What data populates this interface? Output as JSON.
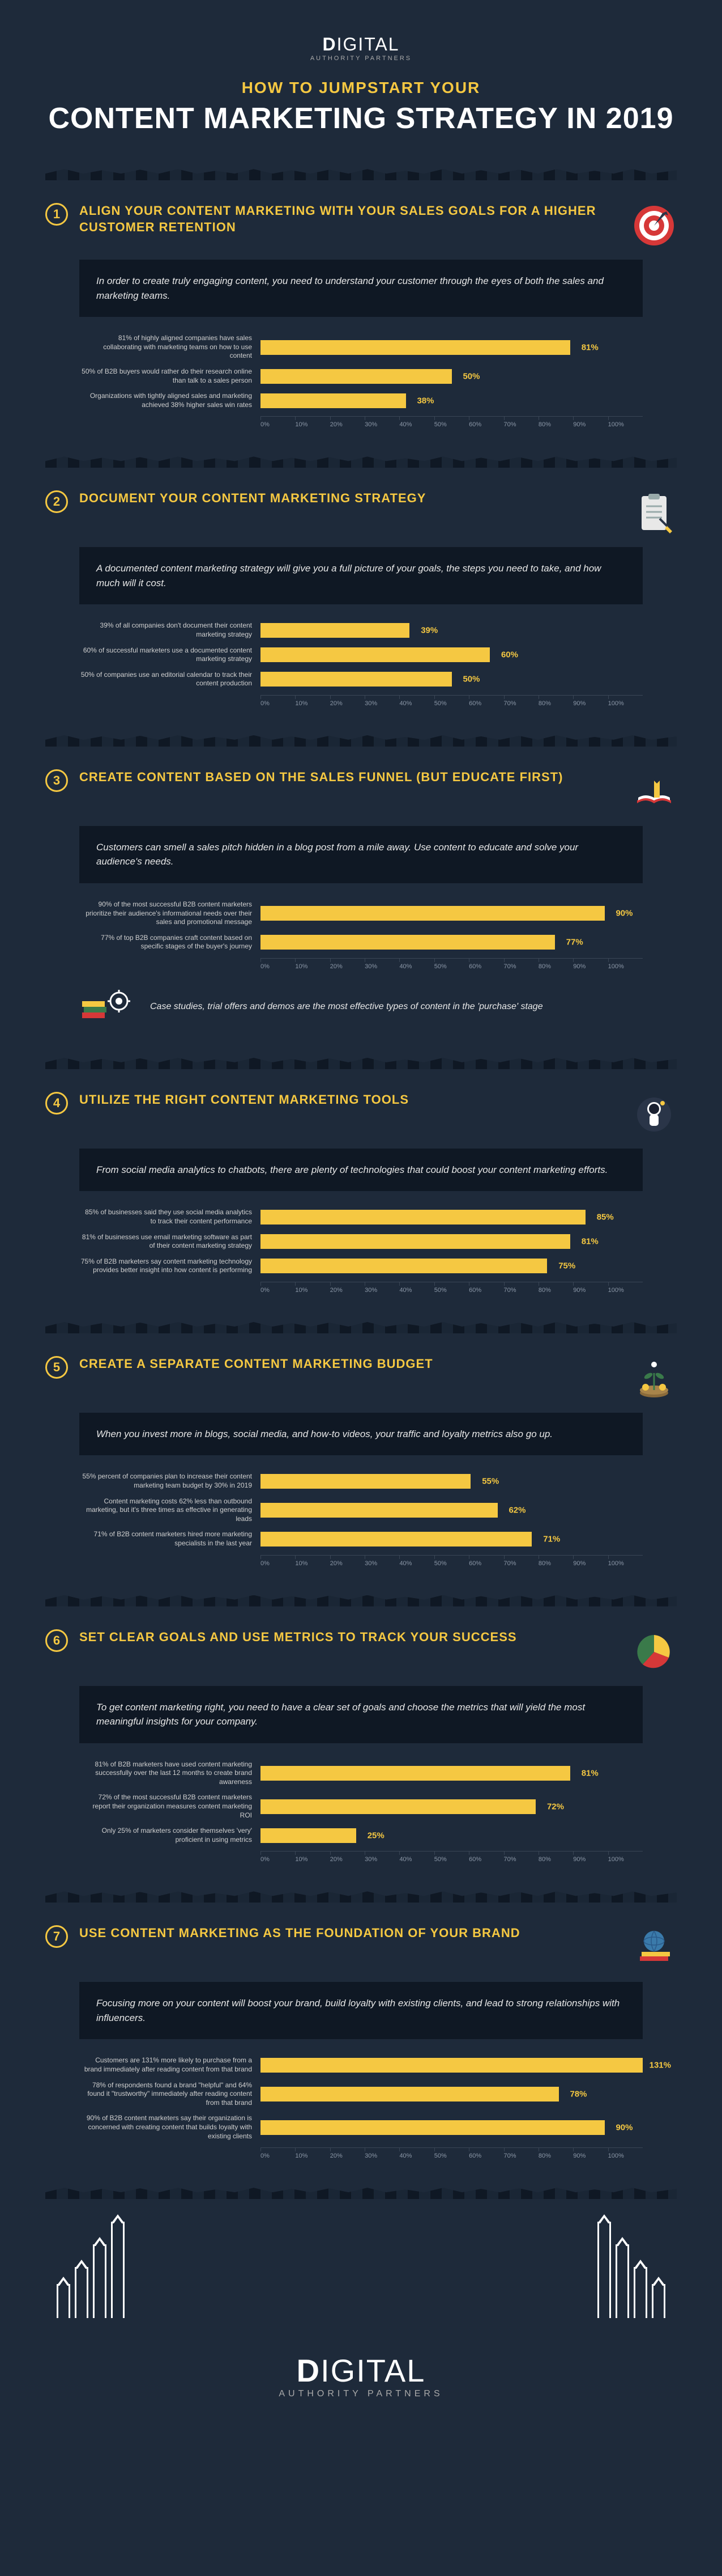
{
  "brand": {
    "name_bold": "D",
    "name_rest": "IGITAL",
    "sub": "AUTHORITY PARTNERS"
  },
  "title": {
    "line1": "HOW TO JUMPSTART YOUR",
    "line2": "CONTENT MARKETING STRATEGY IN 2019"
  },
  "axis_ticks": [
    "0%",
    "10%",
    "20%",
    "30%",
    "40%",
    "50%",
    "60%",
    "70%",
    "80%",
    "90%",
    "100%"
  ],
  "sections": [
    {
      "num": "1",
      "title": "ALIGN YOUR CONTENT MARKETING WITH YOUR SALES GOALS FOR A HIGHER CUSTOMER RETENTION",
      "desc": "In order to create truly engaging content, you need to understand your customer through the eyes of both the sales and marketing teams.",
      "bars": [
        {
          "label": "81% of highly aligned companies have sales collaborating with marketing teams on how to use content",
          "value": 81,
          "text": "81%"
        },
        {
          "label": "50% of B2B buyers would rather do their research online than talk to a sales person",
          "value": 50,
          "text": "50%"
        },
        {
          "label": "Organizations with tightly aligned sales and marketing achieved 38% higher sales win rates",
          "value": 38,
          "text": "38%"
        }
      ]
    },
    {
      "num": "2",
      "title": "DOCUMENT YOUR CONTENT MARKETING STRATEGY",
      "desc": "A documented content marketing strategy will give you a full picture of your goals, the steps you need to take, and how much will it cost.",
      "bars": [
        {
          "label": "39% of all companies don't document their content marketing strategy",
          "value": 39,
          "text": "39%"
        },
        {
          "label": "60% of successful marketers use a documented content marketing strategy",
          "value": 60,
          "text": "60%"
        },
        {
          "label": "50% of companies use an editorial calendar to track their content production",
          "value": 50,
          "text": "50%"
        }
      ]
    },
    {
      "num": "3",
      "title": "CREATE CONTENT BASED ON THE SALES FUNNEL (BUT EDUCATE FIRST)",
      "desc": "Customers can smell a sales pitch hidden in a blog post from a mile away. Use content to educate and solve your audience's needs.",
      "bars": [
        {
          "label": "90% of the most successful B2B content marketers prioritize their audience's informational needs over their sales and promotional message",
          "value": 90,
          "text": "90%"
        },
        {
          "label": "77% of top B2B companies craft content based on specific stages of the buyer's journey",
          "value": 77,
          "text": "77%"
        }
      ],
      "callout": "Case studies, trial offers and demos are the most effective types of content in the 'purchase' stage"
    },
    {
      "num": "4",
      "title": "UTILIZE THE RIGHT CONTENT MARKETING TOOLS",
      "desc": "From social media analytics to chatbots, there are plenty of technologies that could boost your content marketing efforts.",
      "bars": [
        {
          "label": "85% of businesses said they use social media analytics to track their content performance",
          "value": 85,
          "text": "85%"
        },
        {
          "label": "81% of businesses use email marketing software as part of their content marketing strategy",
          "value": 81,
          "text": "81%"
        },
        {
          "label": "75% of B2B marketers say content marketing technology provides better insight into how content is performing",
          "value": 75,
          "text": "75%"
        }
      ]
    },
    {
      "num": "5",
      "title": "CREATE A SEPARATE CONTENT MARKETING BUDGET",
      "desc": "When you invest more in blogs, social media, and how-to videos, your traffic and loyalty metrics also go up.",
      "bars": [
        {
          "label": "55% percent of companies plan to increase their content marketing team budget by 30% in 2019",
          "value": 55,
          "text": "55%"
        },
        {
          "label": "Content marketing costs 62% less than outbound marketing, but it's three times as effective in generating leads",
          "value": 62,
          "text": "62%"
        },
        {
          "label": "71% of B2B content marketers hired more marketing specialists in the last year",
          "value": 71,
          "text": "71%"
        }
      ]
    },
    {
      "num": "6",
      "title": "SET CLEAR GOALS AND USE METRICS TO TRACK YOUR SUCCESS",
      "desc": "To get content marketing right, you need to have a clear set of goals and choose the metrics that will yield the most meaningful insights for your company.",
      "bars": [
        {
          "label": "81% of B2B marketers have used content marketing successfully over the last 12 months to create brand awareness",
          "value": 81,
          "text": "81%"
        },
        {
          "label": "72% of the most successful B2B content marketers report their organization measures content marketing ROI",
          "value": 72,
          "text": "72%"
        },
        {
          "label": "Only 25% of marketers consider themselves 'very' proficient in using metrics",
          "value": 25,
          "text": "25%"
        }
      ]
    },
    {
      "num": "7",
      "title": "USE CONTENT MARKETING AS THE FOUNDATION OF YOUR BRAND",
      "desc": "Focusing more on your content will boost your brand, build loyalty with existing clients, and lead to strong relationships with influencers.",
      "bars": [
        {
          "label": "Customers are 131% more likely to purchase from a brand immediately after reading content from that brand",
          "value": 100,
          "text": "131%"
        },
        {
          "label": "78% of respondents found a brand \"helpful\" and 64% found it \"trustworthy\" immediately after reading content from that brand",
          "value": 78,
          "text": "78%"
        },
        {
          "label": "90% of B2B content marketers say their organization is concerned with creating content that builds loyalty with existing clients",
          "value": 90,
          "text": "90%"
        }
      ]
    }
  ],
  "style": {
    "bar_color": "#f5c842",
    "bg": "#1e2a3a",
    "box_bg": "#0f1824",
    "title_color": "#f5c842",
    "axis_color": "#3a4656",
    "tick_color": "#8a96a6"
  },
  "icons": {
    "s1": "target",
    "s2": "clipboard",
    "s3": "book",
    "s3c": "books-gear",
    "s4": "astronaut",
    "s5": "plant-coins",
    "s6": "pie-chart",
    "s7": "globe-books"
  }
}
